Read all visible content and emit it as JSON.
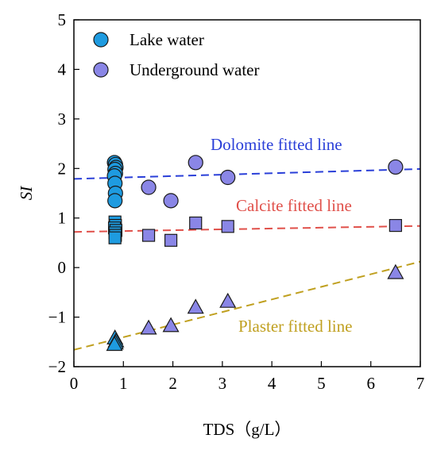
{
  "chart_data": {
    "type": "scatter",
    "xlabel": "TDS（g/L）",
    "ylabel": "SI",
    "xlim": [
      0,
      7
    ],
    "ylim": [
      -2,
      5
    ],
    "xticks": [
      0,
      1,
      2,
      3,
      4,
      5,
      6,
      7
    ],
    "yticks": [
      -2,
      -1,
      0,
      1,
      2,
      3,
      4,
      5
    ],
    "grid": false,
    "legend_position": "top-left",
    "legend": [
      {
        "label": "Lake water",
        "color": "#1e9be0"
      },
      {
        "label": "Underground water",
        "color": "#8a86e6"
      }
    ],
    "series": [
      {
        "name": "Lake water",
        "mineral": "dolomite",
        "marker": "circle",
        "color": "#1e9be0",
        "points": [
          [
            0.82,
            2.12
          ],
          [
            0.84,
            2.08
          ],
          [
            0.85,
            2.02
          ],
          [
            0.83,
            1.98
          ],
          [
            0.84,
            1.9
          ],
          [
            0.82,
            1.85
          ],
          [
            0.83,
            1.7
          ],
          [
            0.84,
            1.5
          ],
          [
            0.83,
            1.35
          ]
        ]
      },
      {
        "name": "Underground water",
        "mineral": "dolomite",
        "marker": "circle",
        "color": "#8a86e6",
        "points": [
          [
            1.51,
            1.62
          ],
          [
            1.96,
            1.35
          ],
          [
            2.46,
            2.12
          ],
          [
            3.11,
            1.82
          ],
          [
            6.5,
            2.03
          ]
        ]
      },
      {
        "name": "Lake water",
        "mineral": "calcite",
        "marker": "square",
        "color": "#1e9be0",
        "points": [
          [
            0.83,
            0.92
          ],
          [
            0.84,
            0.85
          ],
          [
            0.82,
            0.8
          ],
          [
            0.85,
            0.75
          ],
          [
            0.83,
            0.7
          ],
          [
            0.84,
            0.65
          ],
          [
            0.83,
            0.6
          ]
        ]
      },
      {
        "name": "Underground water",
        "mineral": "calcite",
        "marker": "square",
        "color": "#8a86e6",
        "points": [
          [
            1.51,
            0.65
          ],
          [
            1.96,
            0.55
          ],
          [
            2.46,
            0.9
          ],
          [
            3.11,
            0.83
          ],
          [
            6.5,
            0.85
          ]
        ]
      },
      {
        "name": "Lake water",
        "mineral": "plaster",
        "marker": "triangle",
        "color": "#1e9be0",
        "points": [
          [
            0.83,
            -1.42
          ],
          [
            0.85,
            -1.48
          ],
          [
            0.84,
            -1.52
          ],
          [
            0.82,
            -1.55
          ]
        ]
      },
      {
        "name": "Underground water",
        "mineral": "plaster",
        "marker": "triangle",
        "color": "#8a86e6",
        "points": [
          [
            1.51,
            -1.22
          ],
          [
            1.96,
            -1.17
          ],
          [
            2.46,
            -0.8
          ],
          [
            3.11,
            -0.68
          ],
          [
            6.5,
            -0.1
          ]
        ]
      }
    ],
    "fit_lines": [
      {
        "label": "Dolomite fitted line",
        "color": "#2a3fd8",
        "x": [
          0,
          7
        ],
        "y": [
          1.79,
          1.99
        ]
      },
      {
        "label": "Calcite fitted line",
        "color": "#e0504a",
        "x": [
          0,
          7
        ],
        "y": [
          0.72,
          0.84
        ]
      },
      {
        "label": "Plaster fitted line",
        "color": "#c0a020",
        "x": [
          0,
          7
        ],
        "y": [
          -1.66,
          0.12
        ]
      }
    ]
  }
}
